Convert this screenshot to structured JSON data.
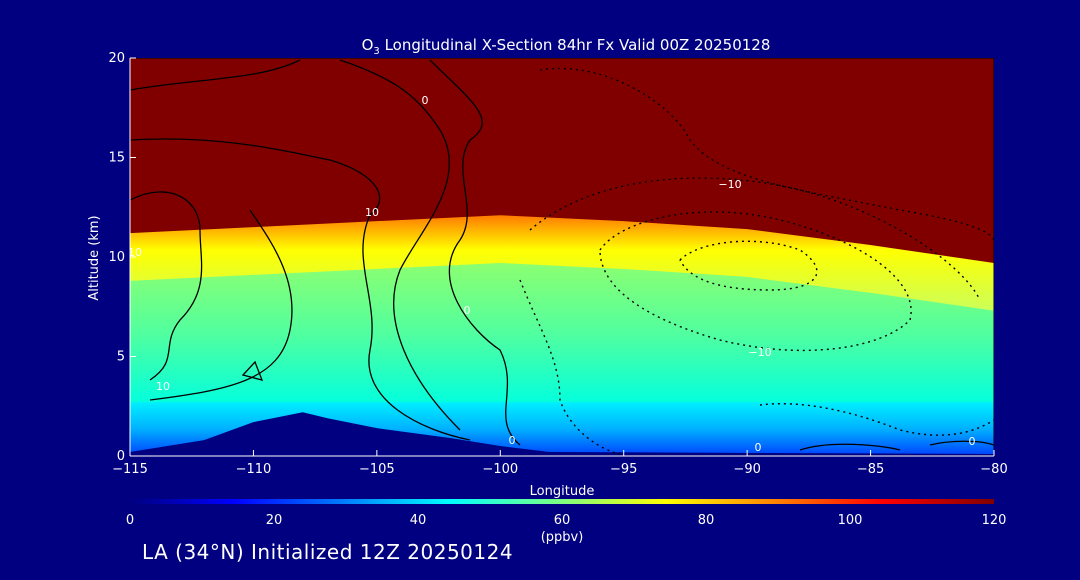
{
  "chart_data": {
    "type": "heatmap",
    "title_prefix": "O",
    "title_sub": "3",
    "title_rest": " Longitudinal X-Section 84hr  Fx Valid 00Z 20250128",
    "xlabel": "Longitude",
    "ylabel": "Altitude (km)",
    "xlim": [
      -115,
      -80
    ],
    "ylim": [
      0,
      20
    ],
    "x_ticks": [
      -115,
      -110,
      -105,
      -100,
      -95,
      -90,
      -85,
      -80
    ],
    "y_ticks": [
      0,
      5,
      10,
      15,
      20
    ],
    "variable": "O3",
    "units": "(ppbv)",
    "colorbar": {
      "min": 0,
      "max": 120,
      "ticks": [
        0,
        20,
        40,
        60,
        80,
        100,
        120
      ],
      "colors": [
        "#000080",
        "#0000ff",
        "#0080ff",
        "#00ffff",
        "#80ff80",
        "#ffff00",
        "#ff8000",
        "#ff0000",
        "#800000"
      ]
    },
    "tropopause_height_km": [
      {
        "lon": -115,
        "alt": 10.8
      },
      {
        "lon": -110,
        "alt": 11.1
      },
      {
        "lon": -105,
        "alt": 11.4
      },
      {
        "lon": -100,
        "alt": 11.7
      },
      {
        "lon": -95,
        "alt": 11.4
      },
      {
        "lon": -90,
        "alt": 11.0
      },
      {
        "lon": -85,
        "alt": 10.2
      },
      {
        "lon": -80,
        "alt": 9.3
      }
    ],
    "terrain_height_km": [
      {
        "lon": -115,
        "alt": 0.2
      },
      {
        "lon": -112,
        "alt": 0.8
      },
      {
        "lon": -110,
        "alt": 1.7
      },
      {
        "lon": -108,
        "alt": 2.2
      },
      {
        "lon": -107,
        "alt": 1.9
      },
      {
        "lon": -105,
        "alt": 1.4
      },
      {
        "lon": -102,
        "alt": 0.9
      },
      {
        "lon": -100,
        "alt": 0.5
      },
      {
        "lon": -98,
        "alt": 0.2
      },
      {
        "lon": -80,
        "alt": 0.1
      }
    ],
    "contour_labels": [
      "0",
      "10",
      "0",
      "10",
      "10",
      "0",
      "-10",
      "-10",
      "0",
      "0"
    ]
  },
  "footer": {
    "location_text": "LA (34°N) Initialized 12Z 20250124"
  },
  "colors": {
    "background": "#000080",
    "stratosphere": "#800000"
  }
}
